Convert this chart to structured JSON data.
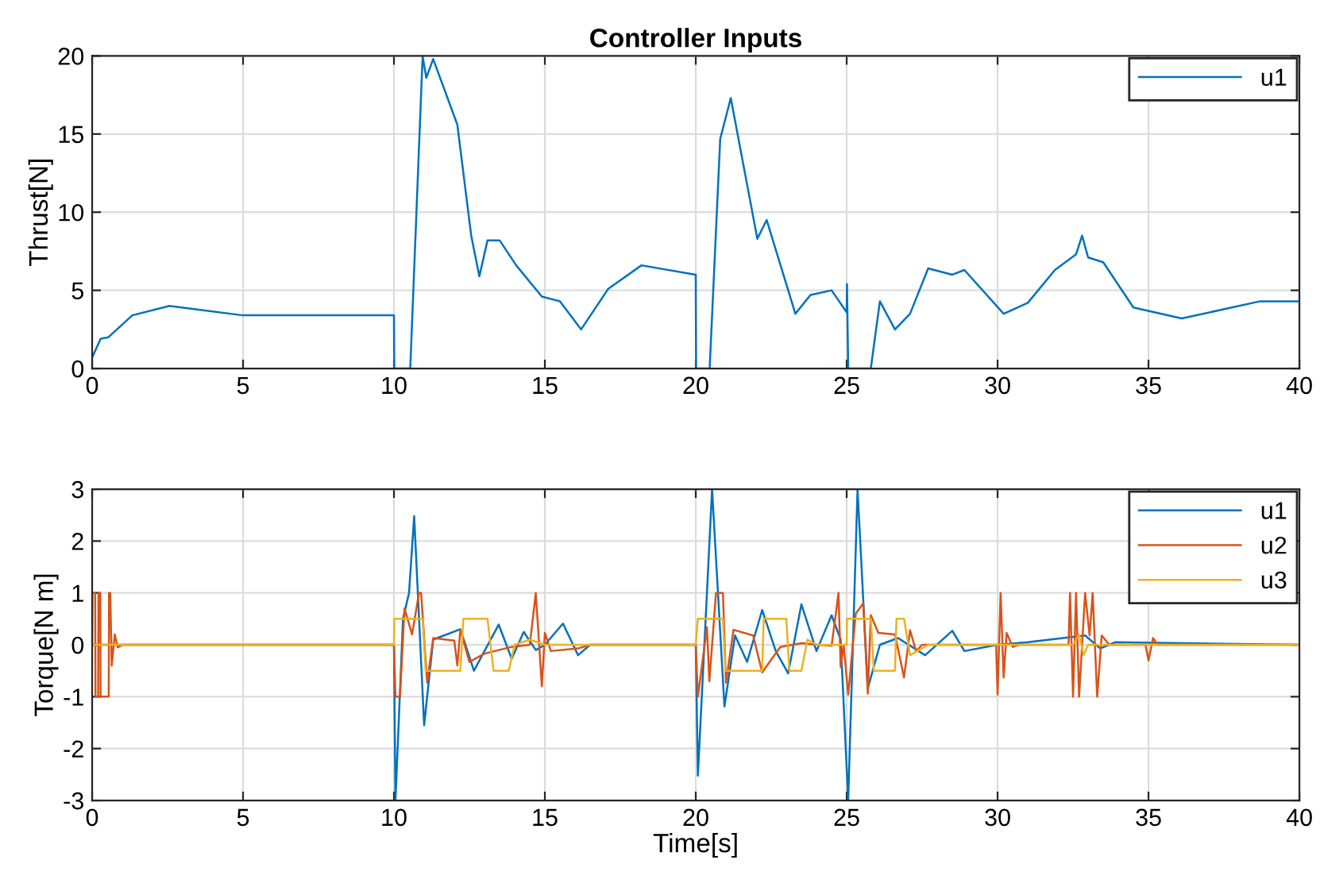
{
  "chart_data": [
    {
      "type": "line",
      "title": "Controller Inputs",
      "ylabel": "Thrust[N]",
      "xlim": [
        0,
        40
      ],
      "xticks": [
        0,
        5,
        10,
        15,
        20,
        25,
        30,
        35,
        40
      ],
      "ylim": [
        0,
        20
      ],
      "yticks": [
        0,
        5,
        10,
        15,
        20
      ],
      "grid": true,
      "legend": "top right",
      "tick_labels": "xy",
      "series": [
        {
          "name": "u1",
          "color": "#0072bd",
          "x": [
            0,
            0.28,
            0.54,
            1.33,
            2.56,
            5.0,
            10.0,
            10.01,
            10.54,
            10.95,
            11.07,
            11.3,
            12.1,
            12.56,
            12.83,
            13.1,
            13.5,
            14.05,
            14.9,
            15.5,
            16.2,
            17.1,
            18.2,
            20.0,
            20.01,
            20.46,
            20.81,
            21.16,
            22.04,
            22.35,
            23.3,
            23.8,
            24.5,
            25.0,
            25.01,
            25.05,
            25.06,
            25.8,
            26.1,
            26.6,
            27.1,
            27.7,
            28.5,
            28.9,
            30.2,
            31.0,
            31.9,
            32.6,
            32.8,
            33.0,
            33.5,
            34.5,
            36.1,
            38.7,
            40.0
          ],
          "values": [
            0.7,
            1.9,
            2.0,
            3.4,
            4.0,
            3.4,
            3.4,
            0,
            0,
            20,
            18.6,
            19.8,
            15.6,
            8.5,
            5.9,
            8.2,
            8.2,
            6.6,
            4.6,
            4.3,
            2.5,
            5.1,
            6.6,
            6.0,
            0,
            0,
            14.7,
            17.3,
            8.3,
            9.5,
            3.5,
            4.7,
            5.0,
            3.6,
            5.4,
            0,
            0,
            0,
            4.3,
            2.5,
            3.5,
            6.4,
            6.0,
            6.3,
            3.5,
            4.2,
            6.3,
            7.3,
            8.5,
            7.1,
            6.8,
            3.9,
            3.2,
            4.3,
            4.3
          ]
        }
      ]
    },
    {
      "type": "line",
      "ylabel": "Torque[N m]",
      "xlabel": "Time[s]",
      "xlim": [
        0,
        40
      ],
      "xticks": [
        0,
        5,
        10,
        15,
        20,
        25,
        30,
        35,
        40
      ],
      "ylim": [
        -3,
        3
      ],
      "yticks": [
        -3,
        -2,
        -1,
        0,
        1,
        2,
        3
      ],
      "grid": true,
      "legend": "top right",
      "series": [
        {
          "name": "u1",
          "color": "#0072bd",
          "x": [
            0,
            10.0,
            10.05,
            10.3,
            10.5,
            10.67,
            11.0,
            11.3,
            12.2,
            12.65,
            13.47,
            13.9,
            14.3,
            14.7,
            15.0,
            15.6,
            16.1,
            16.5,
            20.0,
            20.07,
            20.54,
            20.95,
            21.3,
            21.7,
            22.2,
            22.65,
            23.06,
            23.5,
            24.0,
            24.5,
            24.8,
            25.05,
            25.36,
            25.7,
            26.1,
            26.7,
            27.6,
            28.5,
            28.9,
            30.0,
            31.0,
            32.9,
            33.4,
            33.9,
            40.0
          ],
          "values": [
            0,
            0,
            -3,
            0.5,
            1.0,
            2.48,
            -1.55,
            0.1,
            0.3,
            -0.5,
            0.39,
            -0.27,
            0.25,
            -0.1,
            0,
            0.41,
            -0.2,
            0,
            0,
            -2.52,
            3,
            -1.19,
            0.18,
            -0.33,
            0.67,
            -0.12,
            -0.55,
            0.78,
            -0.12,
            0.57,
            0.1,
            -3,
            3,
            -0.84,
            0,
            0.13,
            -0.2,
            0.27,
            -0.12,
            0,
            0.05,
            0.18,
            -0.07,
            0.05,
            0
          ]
        },
        {
          "name": "u2",
          "color": "#d95319",
          "x": [
            0,
            0.01,
            0.1,
            0.11,
            0.2,
            0.21,
            0.27,
            0.28,
            0.55,
            0.56,
            0.6,
            0.65,
            0.75,
            0.85,
            1.0,
            10.0,
            10.05,
            10.2,
            10.35,
            10.6,
            10.83,
            10.9,
            11.1,
            11.3,
            12.0,
            12.1,
            12.2,
            12.5,
            13.0,
            13.9,
            14.5,
            14.7,
            14.9,
            15.0,
            15.2,
            16.1,
            16.5,
            20.0,
            20.07,
            20.37,
            20.45,
            20.67,
            20.9,
            21.0,
            21.25,
            21.9,
            22.2,
            22.8,
            23.5,
            24.5,
            24.73,
            24.8,
            24.9,
            25.05,
            25.3,
            25.55,
            25.7,
            25.8,
            26.05,
            26.6,
            26.9,
            27.1,
            27.3,
            27.5,
            29.95,
            30.0,
            30.1,
            30.2,
            30.3,
            30.5,
            30.7,
            32.35,
            32.4,
            32.5,
            32.6,
            32.7,
            32.9,
            33.05,
            33.15,
            33.3,
            33.45,
            33.7,
            34.9,
            35.0,
            35.15,
            35.3,
            40.0
          ],
          "values": [
            0,
            1,
            1,
            -1,
            -1,
            1,
            1,
            -1,
            -1,
            1,
            1,
            -0.4,
            0.2,
            -0.05,
            0,
            0,
            -1,
            -1,
            0.7,
            0.2,
            1,
            1,
            -0.73,
            0.13,
            0.08,
            -0.4,
            0.29,
            -0.33,
            -0.17,
            -0.04,
            0,
            1,
            -0.8,
            0.23,
            -0.12,
            -0.07,
            0,
            0,
            -1,
            0.34,
            -0.7,
            1,
            1,
            -0.73,
            0.29,
            0.18,
            -0.53,
            -0.04,
            0.03,
            -0.02,
            1,
            -0.43,
            0,
            -0.96,
            0.6,
            0.8,
            -0.94,
            0.57,
            0.23,
            0.2,
            -0.63,
            0.28,
            -0.12,
            0,
            0,
            -0.96,
            1,
            -0.63,
            0.23,
            -0.04,
            0,
            0,
            1,
            -1,
            1,
            -1,
            1,
            0.18,
            1,
            -1,
            0.18,
            0,
            0,
            -0.3,
            0.13,
            0,
            0
          ]
        },
        {
          "name": "u3",
          "color": "#edb120",
          "x": [
            0,
            10.0,
            10.01,
            10.95,
            11.05,
            12.2,
            12.3,
            13.1,
            13.3,
            13.8,
            14.0,
            14.5,
            15.0,
            20.0,
            20.07,
            20.9,
            20.98,
            22.2,
            22.25,
            23.0,
            23.1,
            23.5,
            23.7,
            24.0,
            25.0,
            25.01,
            25.8,
            25.9,
            26.6,
            26.65,
            26.9,
            27.1,
            27.7,
            32.5,
            32.7,
            32.85,
            33.0,
            40.0
          ],
          "values": [
            0,
            0,
            0.5,
            0.5,
            -0.5,
            -0.5,
            0.5,
            0.5,
            -0.5,
            -0.5,
            0,
            0.1,
            0,
            0,
            0.5,
            0.5,
            -0.5,
            -0.5,
            0.5,
            0.5,
            -0.5,
            -0.5,
            0.1,
            0,
            0,
            0.5,
            0.5,
            -0.5,
            -0.5,
            0.5,
            0.5,
            -0.2,
            0,
            0,
            0.2,
            -0.2,
            0,
            0
          ]
        }
      ]
    }
  ]
}
